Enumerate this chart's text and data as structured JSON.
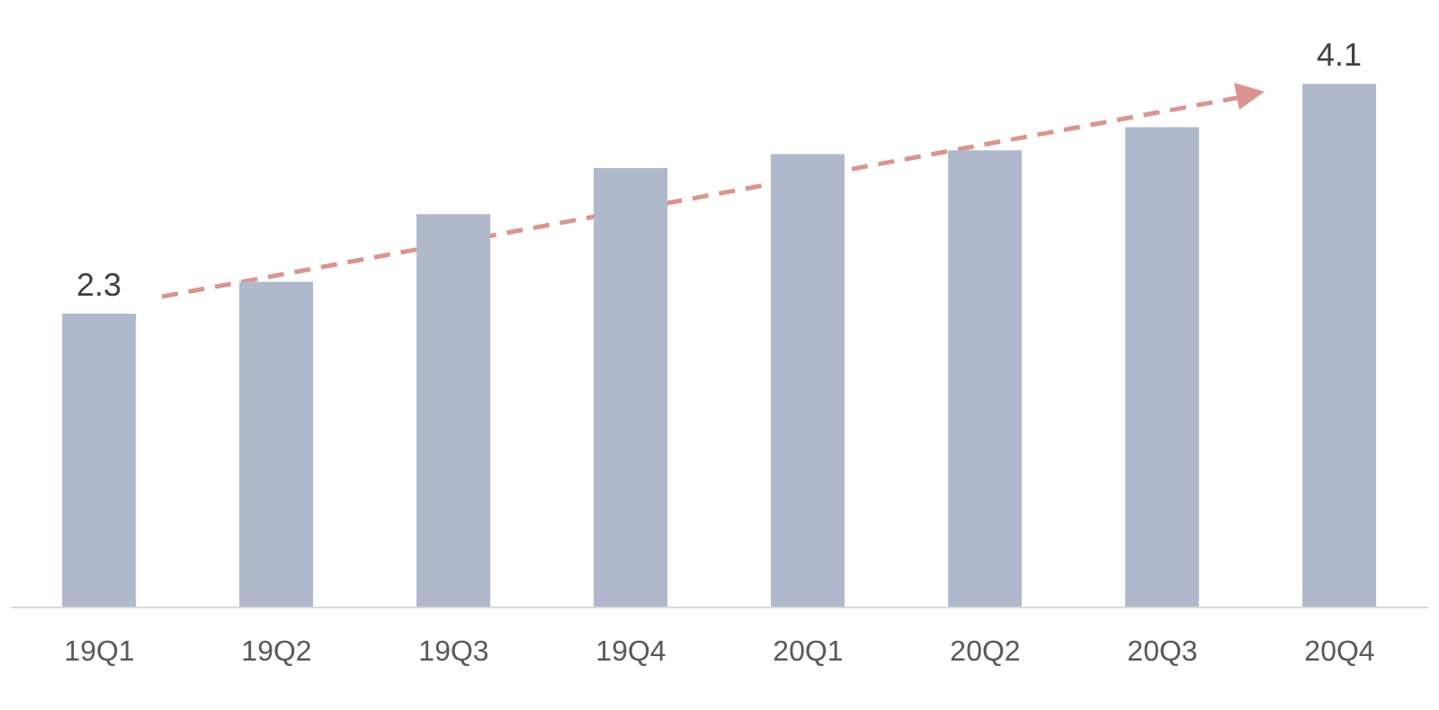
{
  "chart_data": {
    "type": "bar",
    "categories": [
      "19Q1",
      "19Q2",
      "19Q3",
      "19Q4",
      "20Q1",
      "20Q2",
      "20Q3",
      "20Q4"
    ],
    "values": [
      2.3,
      2.55,
      3.08,
      3.44,
      3.55,
      3.58,
      3.76,
      4.1
    ],
    "value_labels": [
      "2.3",
      null,
      null,
      null,
      null,
      null,
      null,
      "4.1"
    ],
    "color": "#b0b9cc",
    "grid": false
  }
}
